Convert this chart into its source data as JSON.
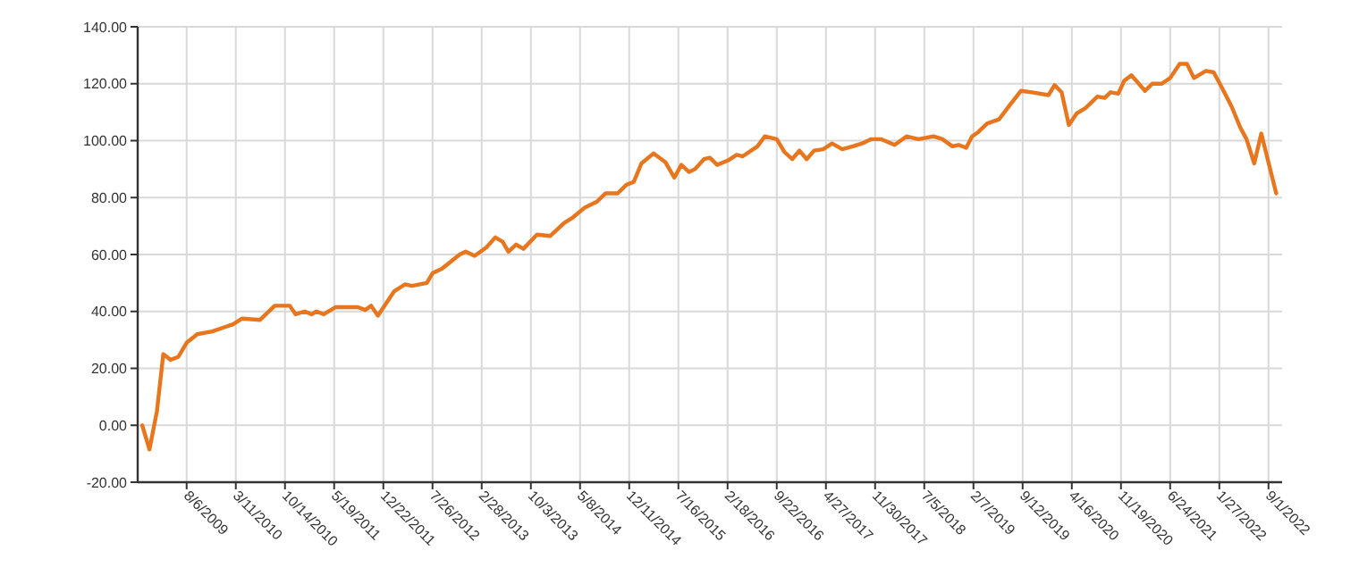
{
  "chart_data": {
    "type": "line",
    "xlim": [
      "2009-01-02",
      "2022-10-31"
    ],
    "ylim": [
      -20,
      140
    ],
    "yticks": [
      {
        "value": -20,
        "label": "-20.00"
      },
      {
        "value": 0,
        "label": "0.00"
      },
      {
        "value": 20,
        "label": "20.00"
      },
      {
        "value": 40,
        "label": "40.00"
      },
      {
        "value": 60,
        "label": "60.00"
      },
      {
        "value": 80,
        "label": "80.00"
      },
      {
        "value": 100,
        "label": "100.00"
      },
      {
        "value": 120,
        "label": "120.00"
      },
      {
        "value": 140,
        "label": "140.00"
      }
    ],
    "xticks": [
      {
        "value": "2009-08-06",
        "label": "8/6/2009"
      },
      {
        "value": "2010-03-11",
        "label": "3/11/2010"
      },
      {
        "value": "2010-10-14",
        "label": "10/14/2010"
      },
      {
        "value": "2011-05-19",
        "label": "5/19/2011"
      },
      {
        "value": "2011-12-22",
        "label": "12/22/2011"
      },
      {
        "value": "2012-07-26",
        "label": "7/26/2012"
      },
      {
        "value": "2013-02-28",
        "label": "2/28/2013"
      },
      {
        "value": "2013-10-03",
        "label": "10/3/2013"
      },
      {
        "value": "2014-05-08",
        "label": "5/8/2014"
      },
      {
        "value": "2014-12-11",
        "label": "12/11/2014"
      },
      {
        "value": "2015-07-16",
        "label": "7/16/2015"
      },
      {
        "value": "2016-02-18",
        "label": "2/18/2016"
      },
      {
        "value": "2016-09-22",
        "label": "9/22/2016"
      },
      {
        "value": "2017-04-27",
        "label": "4/27/2017"
      },
      {
        "value": "2017-11-30",
        "label": "11/30/2017"
      },
      {
        "value": "2018-07-05",
        "label": "7/5/2018"
      },
      {
        "value": "2019-02-07",
        "label": "2/7/2019"
      },
      {
        "value": "2019-09-12",
        "label": "9/12/2019"
      },
      {
        "value": "2020-04-16",
        "label": "4/16/2020"
      },
      {
        "value": "2020-11-19",
        "label": "11/19/2020"
      },
      {
        "value": "2021-06-24",
        "label": "6/24/2021"
      },
      {
        "value": "2022-01-27",
        "label": "1/27/2022"
      },
      {
        "value": "2022-09-01",
        "label": "9/1/2022"
      }
    ],
    "grid": true,
    "marker": "none",
    "line_style": "solid",
    "x": [
      "2009-01-22",
      "2009-02-23",
      "2009-03-28",
      "2009-04-25",
      "2009-05-27",
      "2009-06-30",
      "2009-08-06",
      "2009-09-22",
      "2009-11-27",
      "2010-02-27",
      "2010-04-08",
      "2010-06-25",
      "2010-08-30",
      "2010-11-04",
      "2010-11-30",
      "2011-01-09",
      "2011-02-09",
      "2011-03-02",
      "2011-04-03",
      "2011-05-26",
      "2011-09-01",
      "2011-10-03",
      "2011-10-29",
      "2011-11-28",
      "2012-02-07",
      "2012-03-26",
      "2012-04-26",
      "2012-07-01",
      "2012-07-27",
      "2012-09-05",
      "2012-11-23",
      "2012-12-19",
      "2013-01-28",
      "2013-03-21",
      "2013-04-29",
      "2013-05-31",
      "2013-06-26",
      "2013-07-30",
      "2013-08-31",
      "2013-10-30",
      "2013-12-27",
      "2014-02-26",
      "2014-04-06",
      "2014-05-29",
      "2014-07-20",
      "2014-08-29",
      "2014-10-21",
      "2014-11-29",
      "2014-12-31",
      "2015-02-03",
      "2015-03-28",
      "2015-05-19",
      "2015-06-28",
      "2015-07-29",
      "2015-09-01",
      "2015-09-27",
      "2015-11-06",
      "2015-12-02",
      "2016-01-03",
      "2016-02-19",
      "2016-03-29",
      "2016-04-25",
      "2016-06-29",
      "2016-07-31",
      "2016-09-22",
      "2016-10-26",
      "2016-11-29",
      "2016-12-31",
      "2017-02-01",
      "2017-03-06",
      "2017-04-15",
      "2017-05-24",
      "2017-07-08",
      "2017-08-24",
      "2017-10-03",
      "2017-11-11",
      "2017-12-28",
      "2018-02-24",
      "2018-04-18",
      "2018-06-10",
      "2018-08-14",
      "2018-09-23",
      "2018-11-06",
      "2018-12-03",
      "2019-01-06",
      "2019-02-01",
      "2019-02-28",
      "2019-04-08",
      "2019-05-31",
      "2019-07-22",
      "2019-09-05",
      "2019-10-23",
      "2020-01-04",
      "2020-01-31",
      "2020-03-02",
      "2020-04-03",
      "2020-05-07",
      "2020-06-16",
      "2020-08-07",
      "2020-09-08",
      "2020-10-04",
      "2020-11-07",
      "2020-12-03",
      "2021-01-04",
      "2021-03-05",
      "2021-04-06",
      "2021-05-18",
      "2021-06-24",
      "2021-08-05",
      "2021-09-06",
      "2021-10-07",
      "2021-11-29",
      "2022-01-02",
      "2022-02-05",
      "2022-03-22",
      "2022-04-30",
      "2022-05-27",
      "2022-06-30",
      "2022-07-31",
      "2022-10-05"
    ],
    "series": [
      {
        "color": "#e8761e",
        "values": [
          0,
          -8.5,
          5,
          25,
          23,
          24,
          29,
          32,
          33,
          35.5,
          37.5,
          37,
          42,
          42,
          39,
          40,
          39,
          40,
          39,
          41.5,
          41.5,
          40.5,
          42,
          38.5,
          47,
          49.5,
          49,
          50,
          53.5,
          55,
          60,
          61,
          59.5,
          62.5,
          66,
          64.5,
          61,
          63.5,
          62,
          67,
          66.5,
          71,
          73,
          76.5,
          78.5,
          81.5,
          81.5,
          84.5,
          85.5,
          92,
          95.5,
          92.5,
          87,
          91.5,
          89,
          90,
          93.5,
          94,
          91.5,
          93,
          95,
          94.5,
          98,
          101.5,
          100.5,
          96,
          93.5,
          96.5,
          93.5,
          96.5,
          97,
          99,
          97,
          98,
          99,
          100.5,
          100.5,
          98.5,
          101.5,
          100.5,
          101.5,
          100.5,
          98,
          98.5,
          97.5,
          101.5,
          103,
          106,
          107.5,
          113,
          117.5,
          117,
          116,
          119.5,
          117,
          105.5,
          109.5,
          111.5,
          115.5,
          115,
          117,
          116.5,
          121,
          123,
          117.5,
          120,
          120,
          122,
          127,
          127,
          122,
          124.5,
          124,
          119,
          112,
          104.5,
          100.5,
          92,
          102.5,
          81.5
        ]
      }
    ]
  }
}
